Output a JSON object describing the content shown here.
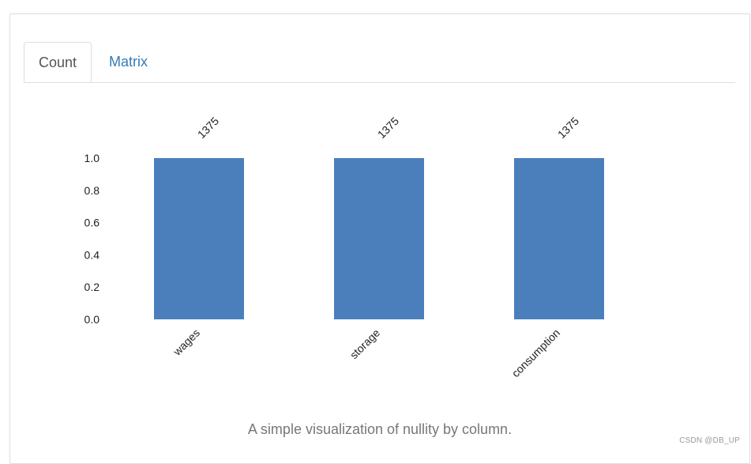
{
  "tabs": [
    {
      "label": "Count",
      "active": true
    },
    {
      "label": "Matrix",
      "active": false
    }
  ],
  "caption": "A simple visualization of nullity by column.",
  "watermark": "CSDN @DB_UP",
  "colors": {
    "bar": "#4a7fbb",
    "active_tab_text": "#555555",
    "link": "#337ab7",
    "caption": "#777777"
  },
  "chart_data": {
    "type": "bar",
    "categories": [
      "wages",
      "storage",
      "consumption"
    ],
    "values": [
      1.0,
      1.0,
      1.0
    ],
    "data_labels": [
      "1375",
      "1375",
      "1375"
    ],
    "title": "",
    "xlabel": "",
    "ylabel": "",
    "ylim": [
      0,
      1.0
    ],
    "yticks": [
      "0.0",
      "0.2",
      "0.4",
      "0.6",
      "0.8",
      "1.0"
    ],
    "grid": false
  }
}
